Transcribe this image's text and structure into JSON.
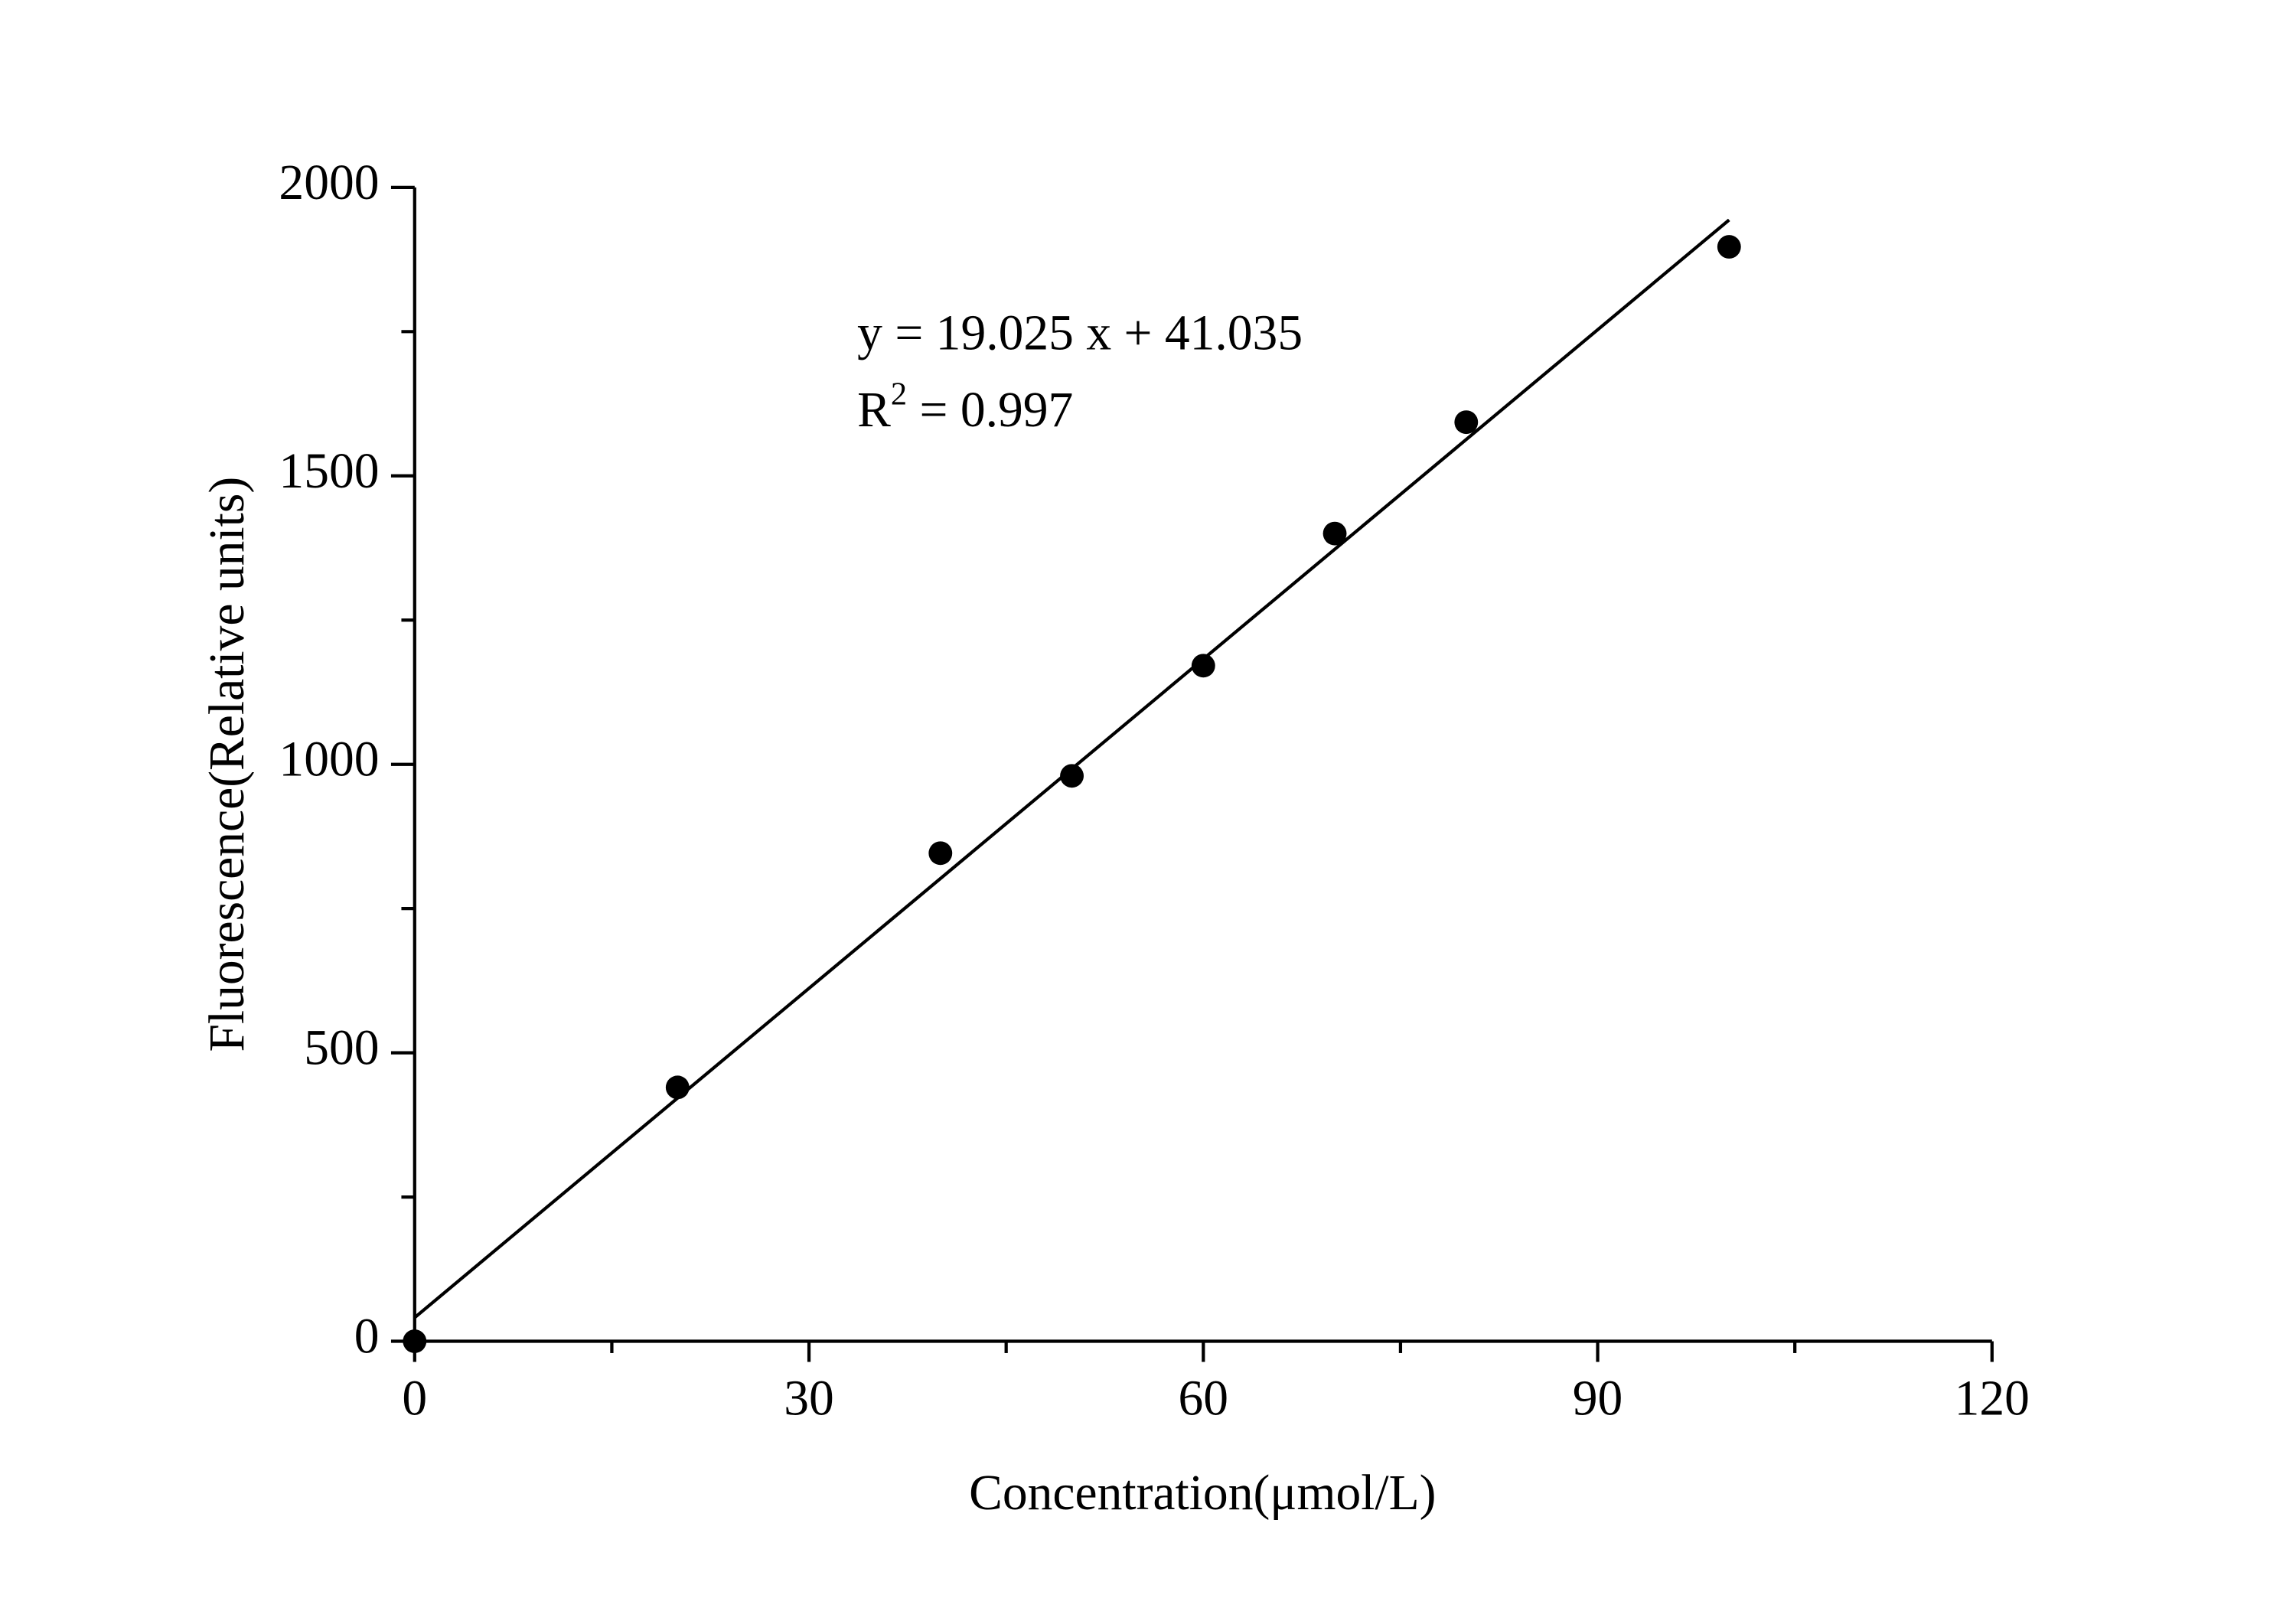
{
  "chart_data": {
    "type": "scatter",
    "x_label": "Concentration(μmol/L)",
    "y_label": "Fluorescence(Relative units)",
    "x": [
      0,
      20,
      40,
      50,
      60,
      70,
      80,
      100
    ],
    "series": [
      {
        "color": "#000000",
        "values": [
          0,
          440,
          846,
          980,
          1171,
          1400,
          1593,
          1897
        ]
      }
    ],
    "fit_line": {
      "x": [
        0,
        100
      ],
      "values": [
        41.035,
        1943.535
      ],
      "color": "#000000"
    },
    "equation": "y = 19.025 x + 41.035",
    "r_squared": {
      "base": "R",
      "sup": "2",
      "text": " = 0.997"
    },
    "xlim": [
      0,
      120
    ],
    "xticks": [
      0,
      30,
      60,
      90,
      120
    ],
    "xminor_ticks": [
      15,
      45,
      75,
      105
    ],
    "ylim": [
      0,
      2000
    ],
    "yticks": [
      0,
      500,
      1000,
      1500,
      2000
    ],
    "yminor_ticks": [
      250,
      750,
      1250,
      1750
    ]
  }
}
